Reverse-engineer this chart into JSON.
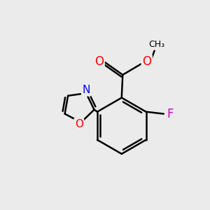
{
  "bg_color": "#ebebeb",
  "bond_color": "#000000",
  "bond_width": 1.8,
  "atom_colors": {
    "O": "#ff0000",
    "N": "#0000ff",
    "F": "#cc00cc",
    "C": "#000000"
  },
  "font_size": 11,
  "figsize": [
    3.0,
    3.0
  ],
  "dpi": 100,
  "xlim": [
    0,
    10
  ],
  "ylim": [
    0,
    10
  ]
}
